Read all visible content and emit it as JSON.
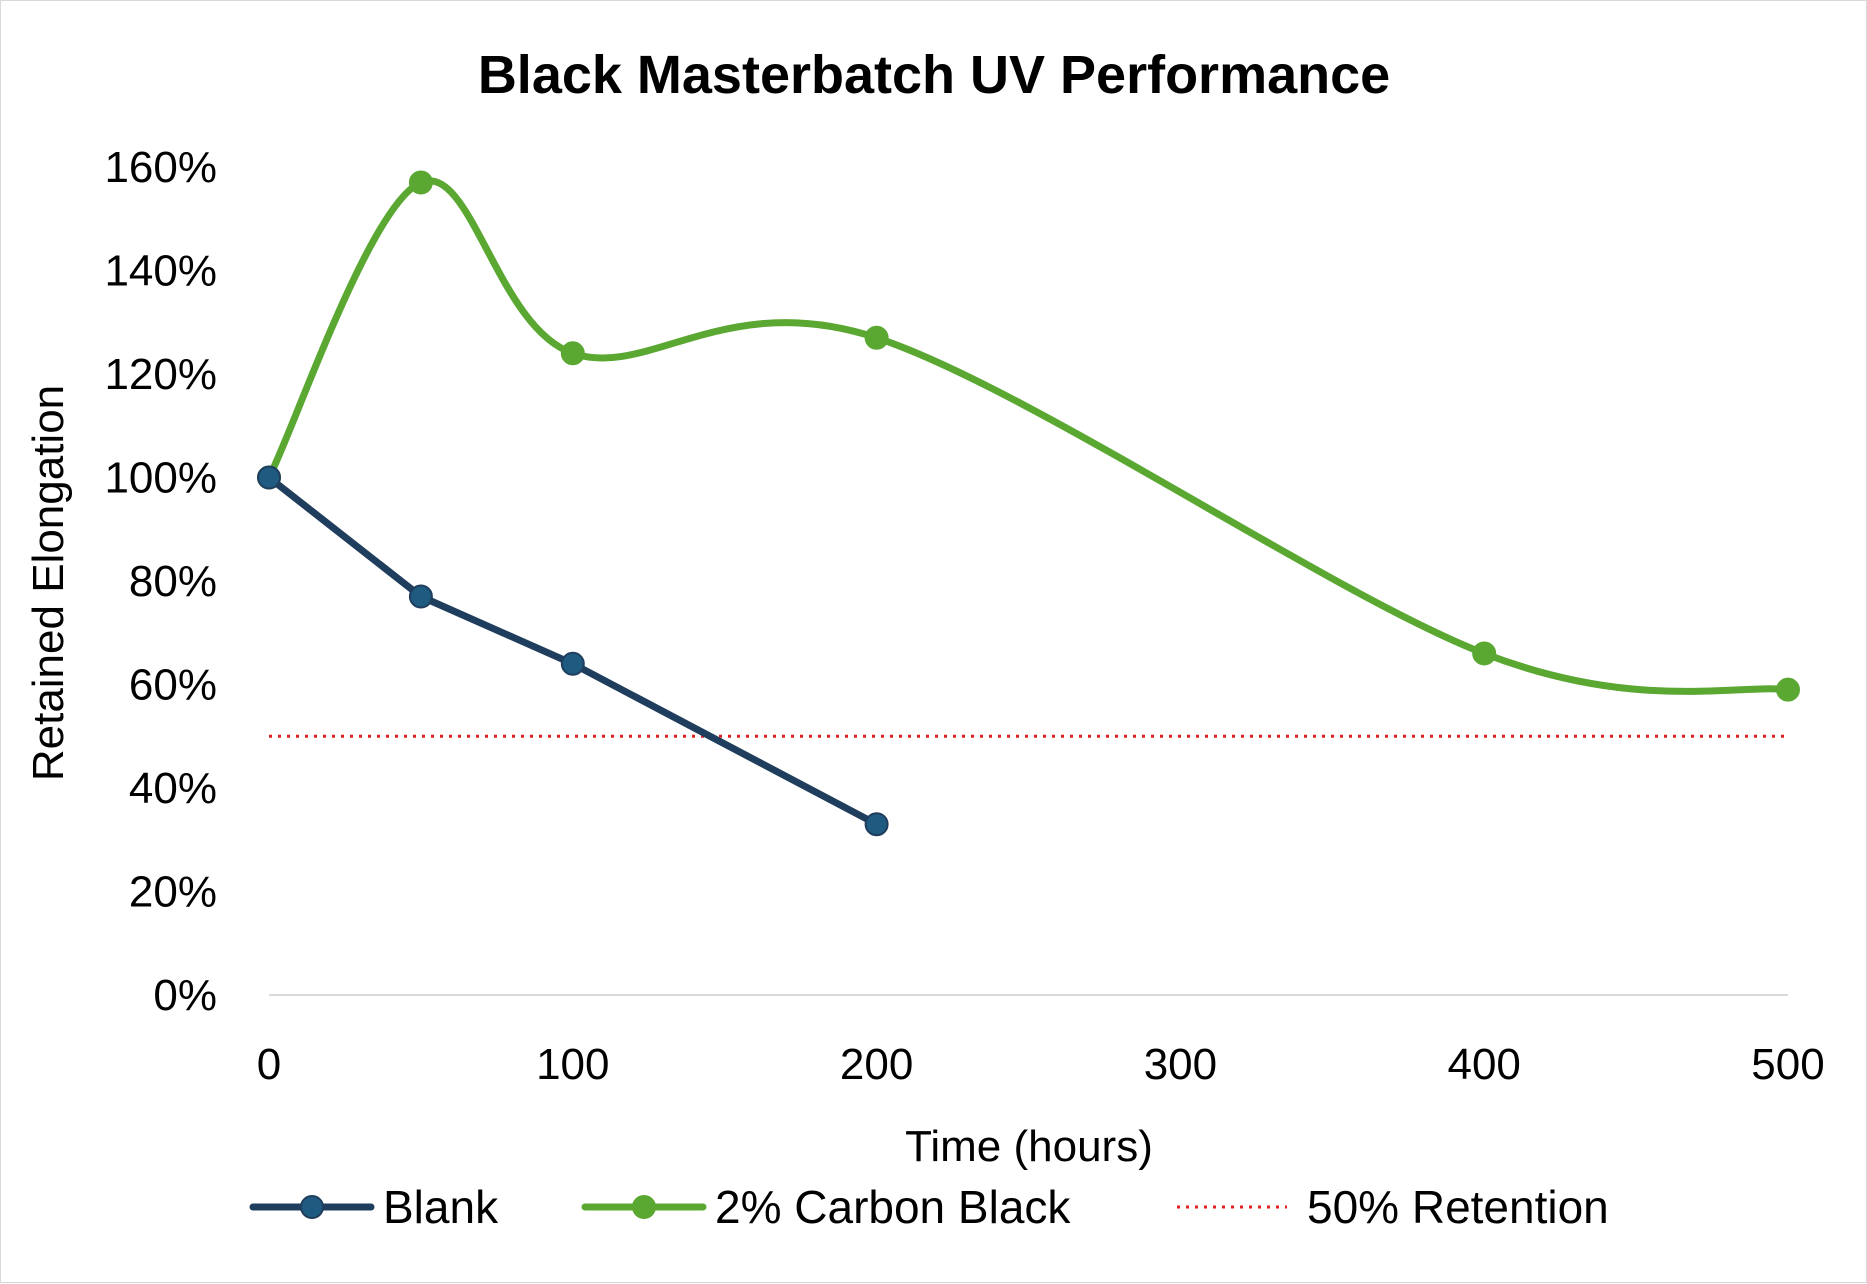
{
  "chart_data": {
    "type": "line",
    "title": "Black Masterbatch UV Performance",
    "xlabel": "Time (hours)",
    "ylabel": "Retained Elongation",
    "xlim": [
      0,
      500
    ],
    "ylim": [
      0,
      1.6
    ],
    "x_ticks": [
      0,
      100,
      200,
      300,
      400,
      500
    ],
    "x_tick_labels": [
      "0",
      "100",
      "200",
      "300",
      "400",
      "500"
    ],
    "y_ticks": [
      0,
      0.2,
      0.4,
      0.6,
      0.8,
      1.0,
      1.2,
      1.4,
      1.6
    ],
    "y_tick_labels": [
      "0%",
      "20%",
      "40%",
      "60%",
      "80%",
      "100%",
      "120%",
      "140%",
      "160%"
    ],
    "legend_position": "bottom",
    "series": [
      {
        "name": "Blank",
        "color": "#1f3d5c",
        "marker_color": "#1f5a80",
        "smooth": false,
        "x": [
          0,
          50,
          100,
          200
        ],
        "values": [
          1.0,
          0.77,
          0.64,
          0.33
        ]
      },
      {
        "name": "2% Carbon Black",
        "color": "#5aa832",
        "marker_color": "#5aa832",
        "smooth": true,
        "x": [
          0,
          50,
          100,
          200,
          400,
          500
        ],
        "values": [
          1.0,
          1.57,
          1.24,
          1.27,
          0.66,
          0.59
        ]
      },
      {
        "name": "50% Retention",
        "color": "#e02020",
        "style": "dotted",
        "x": [
          0,
          500
        ],
        "values": [
          0.5,
          0.5
        ]
      }
    ]
  }
}
